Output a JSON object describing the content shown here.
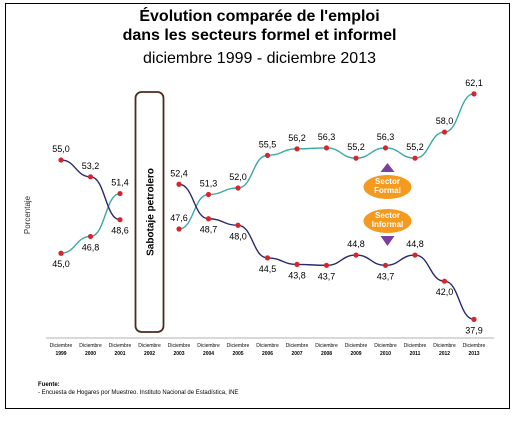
{
  "title_line1": "Évolution comparée de l'emploi",
  "title_line2": "dans les secteurs formel et informel",
  "subtitle": "diciembre 1999 - diciembre 2013",
  "source_label": "Fuente:",
  "source_text": "- Encuesta de Hogares por Muestreo. Instituto Nacional de Estadística, INE",
  "colors": {
    "formal": "#3aa9a4",
    "informal": "#2b2a6b",
    "marker": "#d7262b",
    "badge": "#f39a1f",
    "arrow": "#7b3fa0"
  },
  "chart_data": {
    "type": "line",
    "ylabel": "Porcentaje",
    "categories": [
      [
        "Diciembre",
        "1999"
      ],
      [
        "Diciembre",
        "2000"
      ],
      [
        "Diciembre",
        "2001"
      ],
      [
        "Diciembre",
        "2002"
      ],
      [
        "Diciembre",
        "2003"
      ],
      [
        "Diciembre",
        "2004"
      ],
      [
        "Diciembre",
        "2005"
      ],
      [
        "Diciembre",
        "2006"
      ],
      [
        "Diciembre",
        "2007"
      ],
      [
        "Diciembre",
        "2008"
      ],
      [
        "Diciembre",
        "2009"
      ],
      [
        "Diciembre",
        "2010"
      ],
      [
        "Diciembre",
        "2011"
      ],
      [
        "Diciembre",
        "2012"
      ],
      [
        "Diciembre",
        "2013"
      ]
    ],
    "series": [
      {
        "name": "Sector Formal",
        "values": [
          45.0,
          46.8,
          51.4,
          null,
          47.6,
          51.3,
          52.0,
          55.5,
          56.2,
          56.3,
          55.2,
          56.3,
          55.2,
          58.0,
          62.1
        ]
      },
      {
        "name": "Sector Informal",
        "values": [
          55.0,
          53.2,
          48.6,
          null,
          52.4,
          48.7,
          48.0,
          44.5,
          43.8,
          43.7,
          44.8,
          43.7,
          44.8,
          42.0,
          37.9
        ]
      }
    ],
    "labels_formal": [
      "45,0",
      "46,8",
      "51,4",
      "",
      "47,6",
      "51,3",
      "52,0",
      "55,5",
      "56,2",
      "56,3",
      "55,2",
      "56,3",
      "55,2",
      "58,0",
      "62,1"
    ],
    "labels_informal": [
      "55,0",
      "53,2",
      "48,6",
      "",
      "52,4",
      "48,7",
      "48,0",
      "44,5",
      "43,8",
      "43,7",
      "44,8",
      "43,7",
      "44,8",
      "42,0",
      "37,9"
    ],
    "annotation": "Sabotaje petrolero",
    "badge_formal": [
      "Sector",
      "Formal"
    ],
    "badge_informal": [
      "Sector",
      "Informal"
    ],
    "ylim": [
      35,
      65
    ],
    "grid": false,
    "legend": "none"
  }
}
